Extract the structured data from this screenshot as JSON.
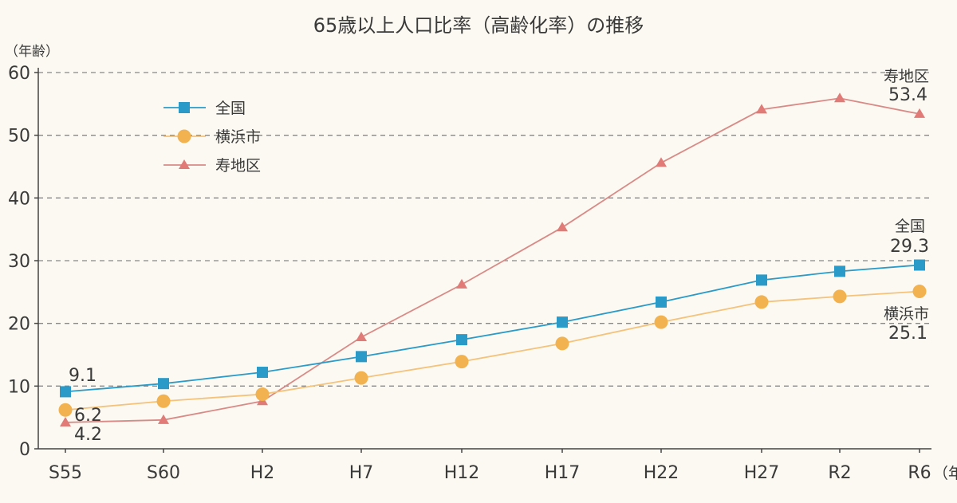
{
  "chart_data": {
    "type": "line",
    "title": "65歳以上人口比率（高齢化率）の推移",
    "ylabel": "（年齢）",
    "xlabel": "（年）",
    "ylim": [
      0,
      60
    ],
    "yticks": [
      0,
      10,
      20,
      30,
      40,
      50,
      60
    ],
    "grid": true,
    "legend_position": "top-left",
    "categories": [
      "S55",
      "S60",
      "H2",
      "H7",
      "H12",
      "H17",
      "H22",
      "H27",
      "R2",
      "R6"
    ],
    "series": [
      {
        "name": "全国",
        "color": "#2a9bc8",
        "marker": "square",
        "values": [
          9.1,
          10.4,
          12.2,
          14.7,
          17.4,
          20.2,
          23.4,
          26.9,
          28.3,
          29.3
        ]
      },
      {
        "name": "横浜市",
        "color": "#f2b24f",
        "marker": "circle",
        "values": [
          6.2,
          7.6,
          8.7,
          11.3,
          13.9,
          16.8,
          20.2,
          23.4,
          24.3,
          25.1
        ]
      },
      {
        "name": "寿地区",
        "color": "#e07b78",
        "marker": "triangle",
        "values": [
          4.2,
          4.6,
          7.6,
          17.8,
          26.2,
          35.3,
          45.6,
          54.1,
          55.9,
          53.4
        ]
      }
    ],
    "annotations": [
      {
        "text": "9.1"
      },
      {
        "text": "6.2"
      },
      {
        "text": "4.2"
      },
      {
        "text": "寿地区"
      },
      {
        "text": "53.4"
      },
      {
        "text": "全国"
      },
      {
        "text": "29.3"
      },
      {
        "text": "横浜市"
      },
      {
        "text": "25.1"
      }
    ]
  }
}
